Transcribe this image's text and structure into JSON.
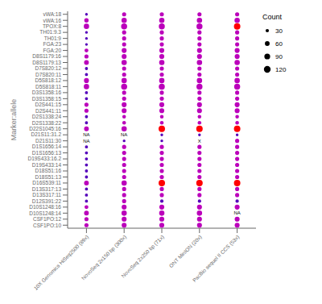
{
  "chart_data": {
    "type": "scatter",
    "ylabel": "Marker:allele",
    "categories": [
      "10X Genomics HiSeq2500 (89x)",
      "NovoSeq 2x150 bp (300x)",
      "NovoSeq 2x250 bp (71x)",
      "ONT MinION (20x)",
      "PacBio sequel II CCS (53x)"
    ],
    "rows": [
      "vWA:18",
      "vWA:16",
      "TPOX:8",
      "TH01:9.3",
      "TH01:9",
      "FGA:23",
      "FGA:20",
      "D8S1179:16",
      "D8S1179:13",
      "D7S820:12",
      "D7S820:11",
      "D5S818:12",
      "D5S818:11",
      "D3S1358:16",
      "D3S1358:15",
      "D2S441:15",
      "D2S441:11",
      "D2S1338:24",
      "D2S1338:22",
      "D22S1045:16",
      "D21S11:31.2",
      "D21S11:30",
      "D1S1656:14",
      "D1S1656:13",
      "D19S433:16.2",
      "D19S433:14",
      "D18S51:16",
      "D18S51:13",
      "D16S539:11",
      "D13S317:13",
      "D13S317:11",
      "D12S391:22",
      "D10S1248:16",
      "D10S1248:14",
      "CSF1PO:12",
      "CSF1PO:10"
    ],
    "sizes": [
      [
        20,
        50,
        75,
        20,
        20,
        20,
        40,
        45,
        60,
        25,
        25,
        65,
        75,
        25,
        25,
        45,
        45,
        25,
        25,
        60,
        null,
        null,
        25,
        25,
        25,
        25,
        25,
        25,
        60,
        25,
        25,
        25,
        40,
        60,
        45,
        45
      ],
      [
        45,
        75,
        95,
        45,
        45,
        45,
        65,
        65,
        75,
        45,
        45,
        75,
        95,
        45,
        45,
        65,
        65,
        35,
        35,
        75,
        null,
        20,
        45,
        45,
        45,
        45,
        45,
        45,
        75,
        45,
        45,
        45,
        65,
        75,
        65,
        65
      ],
      [
        45,
        75,
        95,
        45,
        45,
        45,
        65,
        65,
        75,
        45,
        45,
        75,
        95,
        45,
        45,
        65,
        65,
        35,
        35,
        110,
        20,
        20,
        45,
        45,
        45,
        45,
        45,
        45,
        110,
        45,
        45,
        30,
        65,
        75,
        65,
        65
      ],
      [
        45,
        75,
        95,
        45,
        45,
        45,
        65,
        65,
        75,
        45,
        45,
        75,
        95,
        45,
        45,
        65,
        65,
        35,
        35,
        110,
        20,
        null,
        45,
        45,
        45,
        45,
        45,
        45,
        110,
        45,
        45,
        30,
        65,
        75,
        65,
        65
      ],
      [
        45,
        75,
        110,
        45,
        45,
        45,
        65,
        65,
        75,
        45,
        45,
        75,
        95,
        45,
        45,
        65,
        65,
        35,
        35,
        110,
        20,
        45,
        45,
        45,
        45,
        45,
        45,
        45,
        110,
        45,
        45,
        30,
        65,
        null,
        65,
        65
      ]
    ],
    "colors": [
      [
        "#5500BB",
        "#BB00BB",
        "#BB00BB",
        "#5500BB",
        "#5500BB",
        "#5500BB",
        "#BB00BB",
        "#BB00BB",
        "#BB00BB",
        "#5500BB",
        "#5500BB",
        "#BB00BB",
        "#BB00BB",
        "#5500BB",
        "#5500BB",
        "#BB00BB",
        "#BB00BB",
        "#5500BB",
        "#5500BB",
        "#BB00BB",
        null,
        null,
        "#5500BB",
        "#5500BB",
        "#5500BB",
        "#5500BB",
        "#5500BB",
        "#5500BB",
        "#BB00BB",
        "#5500BB",
        "#5500BB",
        "#5500BB",
        "#BB00BB",
        "#BB00BB",
        "#BB00BB",
        "#BB00BB"
      ],
      [
        "#BB00BB",
        "#BB00BB",
        "#BB00BB",
        "#BB00BB",
        "#BB00BB",
        "#BB00BB",
        "#BB00BB",
        "#BB00BB",
        "#BB00BB",
        "#BB00BB",
        "#BB00BB",
        "#BB00BB",
        "#BB00BB",
        "#BB00BB",
        "#BB00BB",
        "#BB00BB",
        "#BB00BB",
        "#BB00BB",
        "#BB00BB",
        "#BB00BB",
        null,
        "#5500BB",
        "#BB00BB",
        "#BB00BB",
        "#BB00BB",
        "#BB00BB",
        "#BB00BB",
        "#BB00BB",
        "#BB00BB",
        "#BB00BB",
        "#BB00BB",
        "#BB00BB",
        "#BB00BB",
        "#BB00BB",
        "#BB00BB",
        "#BB00BB"
      ],
      [
        "#BB00BB",
        "#BB00BB",
        "#BB00BB",
        "#BB00BB",
        "#BB00BB",
        "#BB00BB",
        "#BB00BB",
        "#BB00BB",
        "#BB00BB",
        "#BB00BB",
        "#BB00BB",
        "#BB00BB",
        "#BB00BB",
        "#BB00BB",
        "#BB00BB",
        "#BB00BB",
        "#BB00BB",
        "#BB00BB",
        "#BB00BB",
        "#FF0000",
        "#5500BB",
        "#5500BB",
        "#BB00BB",
        "#BB00BB",
        "#BB00BB",
        "#BB00BB",
        "#BB00BB",
        "#BB00BB",
        "#FF0000",
        "#BB00BB",
        "#BB00BB",
        "#5500BB",
        "#BB00BB",
        "#BB00BB",
        "#BB00BB",
        "#BB00BB"
      ],
      [
        "#BB00BB",
        "#BB00BB",
        "#BB00BB",
        "#BB00BB",
        "#BB00BB",
        "#BB00BB",
        "#BB00BB",
        "#BB00BB",
        "#BB00BB",
        "#BB00BB",
        "#BB00BB",
        "#BB00BB",
        "#BB00BB",
        "#BB00BB",
        "#BB00BB",
        "#BB00BB",
        "#BB00BB",
        "#BB00BB",
        "#BB00BB",
        "#FF0000",
        "#5500BB",
        null,
        "#BB00BB",
        "#BB00BB",
        "#BB00BB",
        "#BB00BB",
        "#BB00BB",
        "#BB00BB",
        "#FF0000",
        "#BB00BB",
        "#BB00BB",
        "#5500BB",
        "#BB00BB",
        "#BB00BB",
        "#BB00BB",
        "#BB00BB"
      ],
      [
        "#BB00BB",
        "#BB00BB",
        "#FF0000",
        "#BB00BB",
        "#BB00BB",
        "#BB00BB",
        "#BB00BB",
        "#BB00BB",
        "#BB00BB",
        "#BB00BB",
        "#BB00BB",
        "#BB00BB",
        "#BB00BB",
        "#BB00BB",
        "#BB00BB",
        "#BB00BB",
        "#BB00BB",
        "#BB00BB",
        "#BB00BB",
        "#FF0000",
        "#5500BB",
        "#BB00BB",
        "#BB00BB",
        "#BB00BB",
        "#BB00BB",
        "#BB00BB",
        "#BB00BB",
        "#BB00BB",
        "#FF0000",
        "#BB00BB",
        "#BB00BB",
        "#5500BB",
        "#BB00BB",
        null,
        "#BB00BB",
        "#BB00BB"
      ]
    ],
    "cell_labels": [
      {
        "x": "10X Genomics HiSeq2500 (89x)",
        "y": "D21S11:31.2",
        "label": "NA"
      },
      {
        "x": "10X Genomics HiSeq2500 (89x)",
        "y": "D21S11:30",
        "label": "NA"
      },
      {
        "x": "NovoSeq 2x150 bp (300x)",
        "y": "D21S11:31.2",
        "label": "NA"
      },
      {
        "x": "ONT MinION (20x)",
        "y": "D21S11:30",
        "label": "X"
      },
      {
        "x": "PacBio sequel II CCS (53x)",
        "y": "D10S1248:14",
        "label": "NA"
      }
    ],
    "size_legend": {
      "title": "Count",
      "values": [
        30,
        60,
        90,
        120
      ]
    },
    "size_max": 120
  }
}
